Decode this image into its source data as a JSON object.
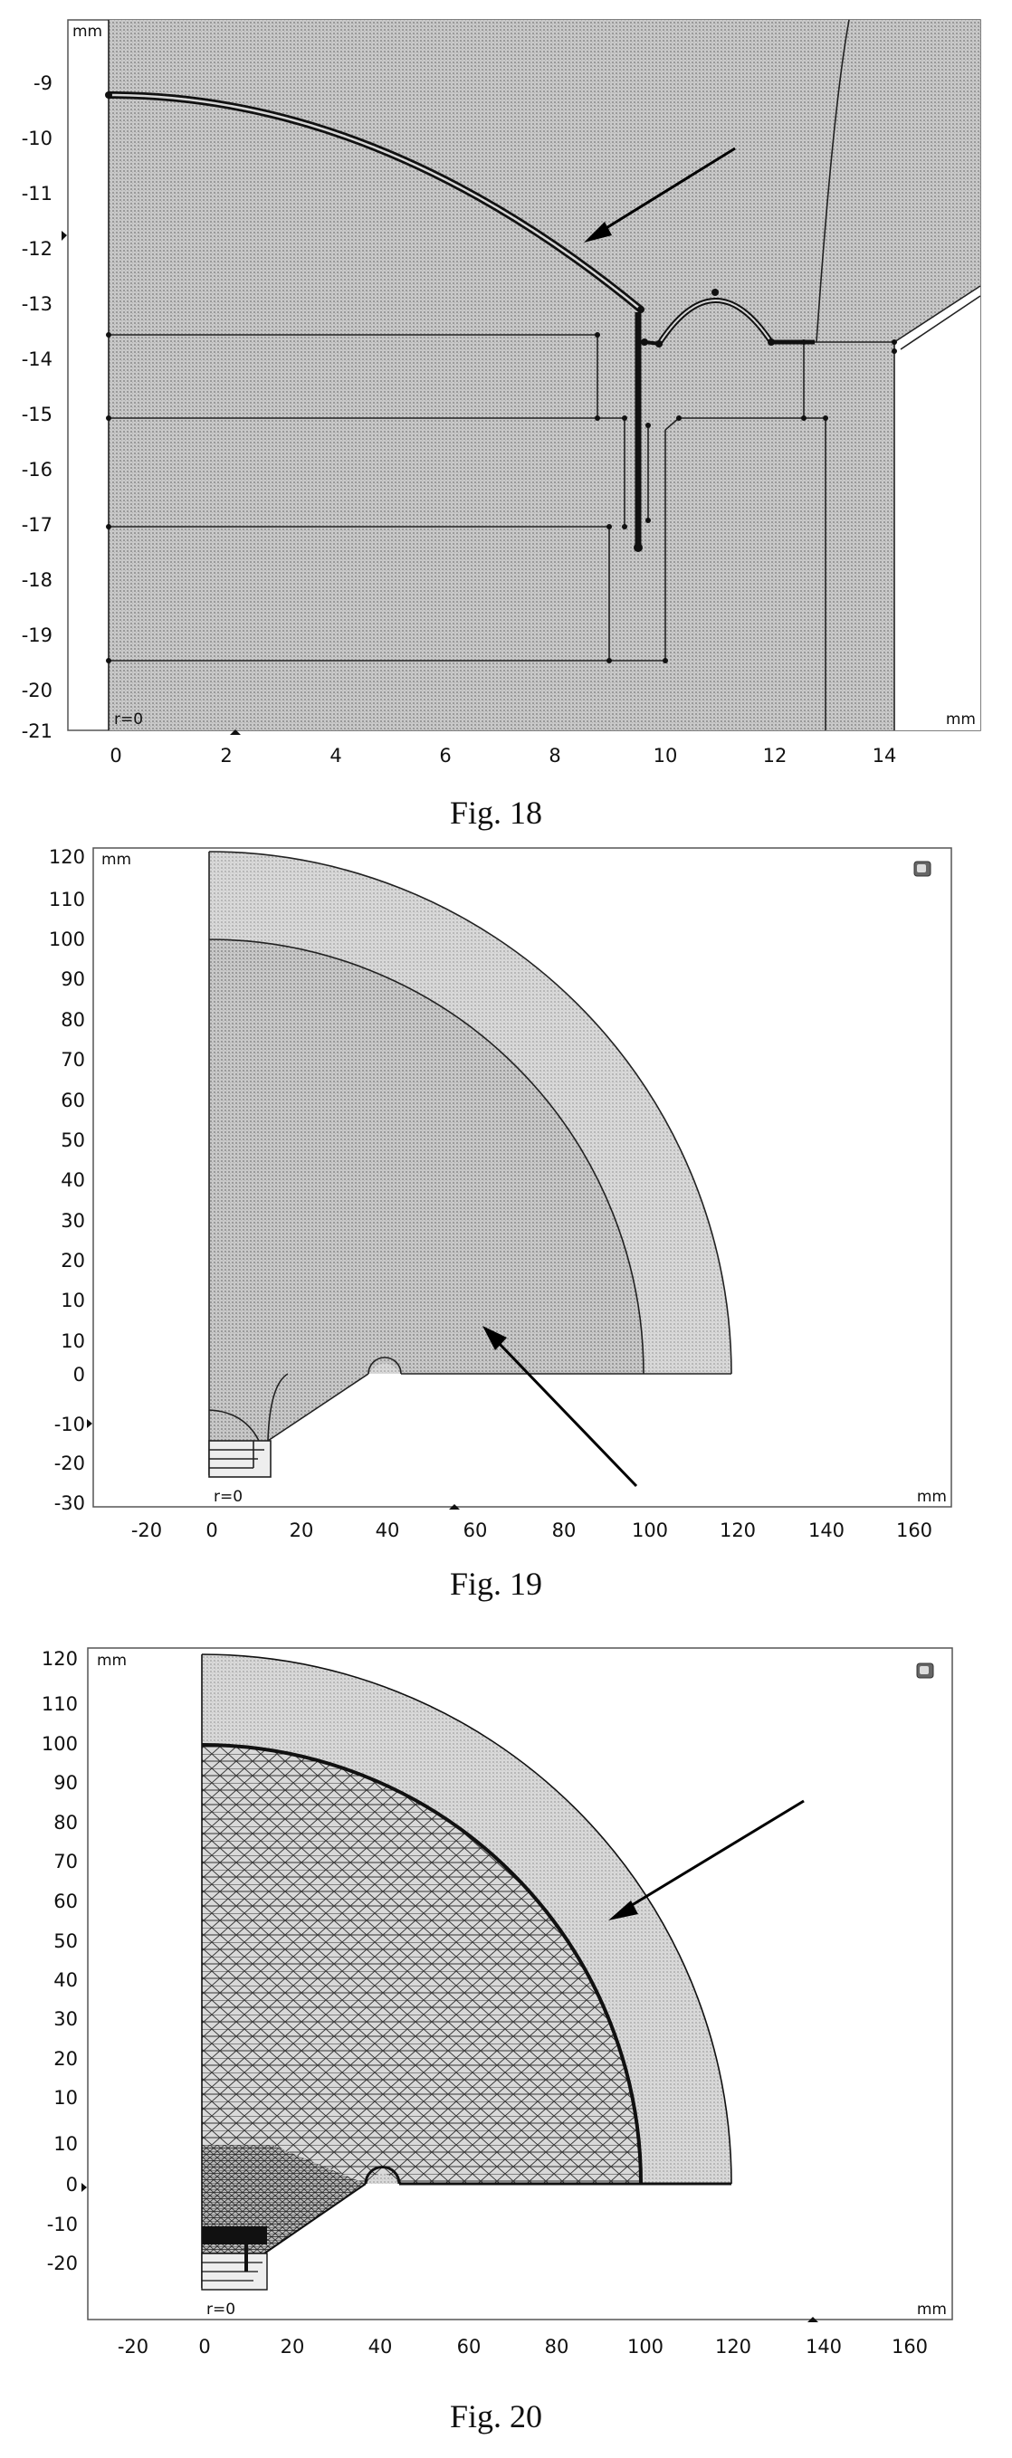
{
  "figures": [
    {
      "caption": "Fig. 18",
      "axis_unit": "mm",
      "origin_label": "r=0",
      "x_ticks": [
        "0",
        "2",
        "4",
        "6",
        "8",
        "10",
        "12",
        "14"
      ],
      "y_ticks": [
        "-9",
        "-10",
        "-11",
        "-12",
        "-13",
        "-14",
        "-15",
        "-16",
        "-17",
        "-18",
        "-19",
        "-20",
        "-21"
      ],
      "x_range": [
        -0.7,
        15.1
      ],
      "y_range": [
        -21.1,
        -8.6
      ]
    },
    {
      "caption": "Fig. 19",
      "axis_unit": "mm",
      "origin_label": "r=0",
      "x_ticks": [
        "-20",
        "0",
        "20",
        "40",
        "60",
        "80",
        "100",
        "120",
        "140",
        "160"
      ],
      "y_ticks": [
        "120",
        "110",
        "100",
        "90",
        "80",
        "70",
        "60",
        "50",
        "40",
        "30",
        "20",
        "10",
        "0",
        "-10",
        "-20",
        "-30"
      ],
      "x_range": [
        -30,
        165
      ],
      "y_range": [
        -31,
        121
      ]
    },
    {
      "caption": "Fig. 20",
      "axis_unit": "mm",
      "origin_label": "r=0",
      "x_ticks": [
        "-20",
        "0",
        "20",
        "40",
        "60",
        "80",
        "100",
        "120",
        "140",
        "160"
      ],
      "y_ticks": [
        "120",
        "110",
        "100",
        "90",
        "80",
        "70",
        "60",
        "50",
        "40",
        "30",
        "20",
        "10",
        "0",
        "-10",
        "-20"
      ],
      "x_range": [
        -30,
        165
      ],
      "y_range": [
        -30,
        124
      ]
    }
  ]
}
